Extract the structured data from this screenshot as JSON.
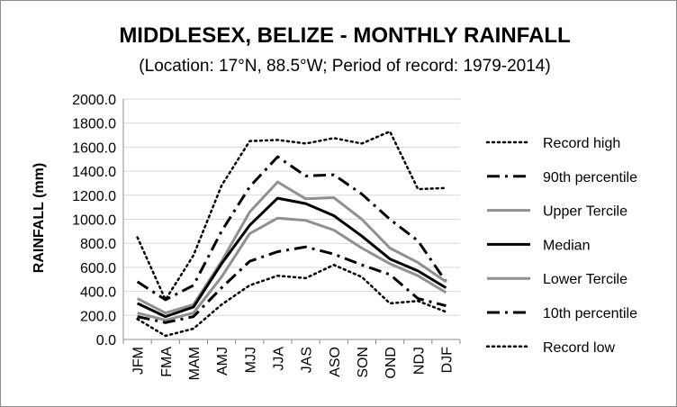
{
  "chart_data": {
    "type": "line",
    "title": "MIDDLESEX, BELIZE - MONTHLY RAINFALL",
    "subtitle": "(Location: 17°N, 88.5°W; Period of record: 1979-2014)",
    "xlabel": "",
    "ylabel": "RAINFALL (mm)",
    "ylim": [
      0,
      2000
    ],
    "yticks": [
      "0.0",
      "200.0",
      "400.0",
      "600.0",
      "800.0",
      "1000.0",
      "1200.0",
      "1400.0",
      "1600.0",
      "1800.0",
      "2000.0"
    ],
    "categories": [
      "JFM",
      "FMA",
      "MAM",
      "AMJ",
      "MJJ",
      "JJA",
      "JAS",
      "ASO",
      "SON",
      "OND",
      "NDJ",
      "DJF"
    ],
    "grid": "horizontal",
    "legend_position": "right",
    "series": [
      {
        "name": "Record high",
        "color": "#000000",
        "style": "dotted",
        "values": [
          850,
          330,
          700,
          1280,
          1650,
          1660,
          1630,
          1675,
          1630,
          1730,
          1250,
          1260
        ]
      },
      {
        "name": "90th percentile",
        "color": "#000000",
        "style": "dashdot",
        "values": [
          480,
          330,
          450,
          900,
          1270,
          1520,
          1360,
          1370,
          1210,
          1000,
          820,
          480
        ]
      },
      {
        "name": "Upper Tercile",
        "color": "#909090",
        "style": "solid",
        "values": [
          340,
          220,
          290,
          650,
          1060,
          1310,
          1170,
          1180,
          1000,
          760,
          640,
          480
        ]
      },
      {
        "name": "Median",
        "color": "#000000",
        "style": "solid",
        "values": [
          300,
          190,
          270,
          630,
          950,
          1175,
          1130,
          1030,
          860,
          670,
          570,
          430
        ]
      },
      {
        "name": "Lower Tercile",
        "color": "#909090",
        "style": "solid",
        "values": [
          220,
          160,
          220,
          520,
          880,
          1010,
          990,
          910,
          760,
          630,
          530,
          390
        ]
      },
      {
        "name": "10th percentile",
        "color": "#000000",
        "style": "dashdot",
        "values": [
          190,
          140,
          190,
          430,
          650,
          730,
          770,
          710,
          620,
          540,
          340,
          280
        ]
      },
      {
        "name": "Record low",
        "color": "#000000",
        "style": "dotted",
        "values": [
          170,
          30,
          90,
          290,
          450,
          530,
          510,
          620,
          520,
          300,
          320,
          230
        ]
      }
    ]
  }
}
